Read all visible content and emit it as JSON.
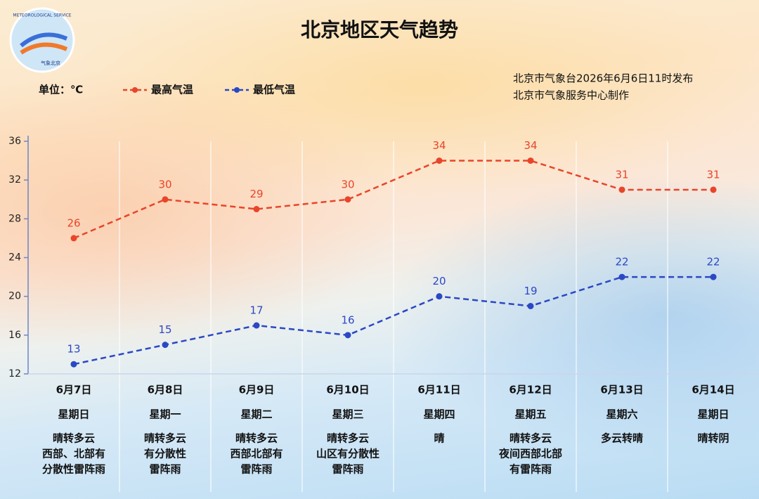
{
  "chart_data": {
    "type": "line",
    "title": "北京地区天气趋势",
    "unit_label": "单位：℃",
    "publisher": [
      "北京市气象台2026年6月6日11时发布",
      "北京市气象服务中心制作"
    ],
    "logo_text": [
      "METEOROLOGICAL SERVICE",
      "气象北京"
    ],
    "categories": [
      "6月7日",
      "6月8日",
      "6月9日",
      "6月10日",
      "6月11日",
      "6月12日",
      "6月13日",
      "6月14日"
    ],
    "weekdays": [
      "星期日",
      "星期一",
      "星期二",
      "星期三",
      "星期四",
      "星期五",
      "星期六",
      "星期日"
    ],
    "weather": [
      [
        "晴转多云",
        "西部、北部有",
        "分散性雷阵雨"
      ],
      [
        "晴转多云",
        "有分散性",
        "雷阵雨"
      ],
      [
        "晴转多云",
        "西部北部有",
        "雷阵雨"
      ],
      [
        "晴转多云",
        "山区有分散性",
        "雷阵雨"
      ],
      [
        "晴"
      ],
      [
        "晴转多云",
        "夜间西部北部",
        "有雷阵雨"
      ],
      [
        "多云转晴"
      ],
      [
        "晴转阴"
      ]
    ],
    "series": [
      {
        "name": "最高气温",
        "color": "#e8452a",
        "values": [
          26,
          30,
          29,
          30,
          34,
          34,
          31,
          31
        ]
      },
      {
        "name": "最低气温",
        "color": "#2b48c4",
        "values": [
          13,
          15,
          17,
          16,
          20,
          19,
          22,
          22
        ]
      }
    ],
    "ylim": [
      12,
      36
    ],
    "yticks": [
      12,
      16,
      20,
      24,
      28,
      32,
      36
    ]
  }
}
